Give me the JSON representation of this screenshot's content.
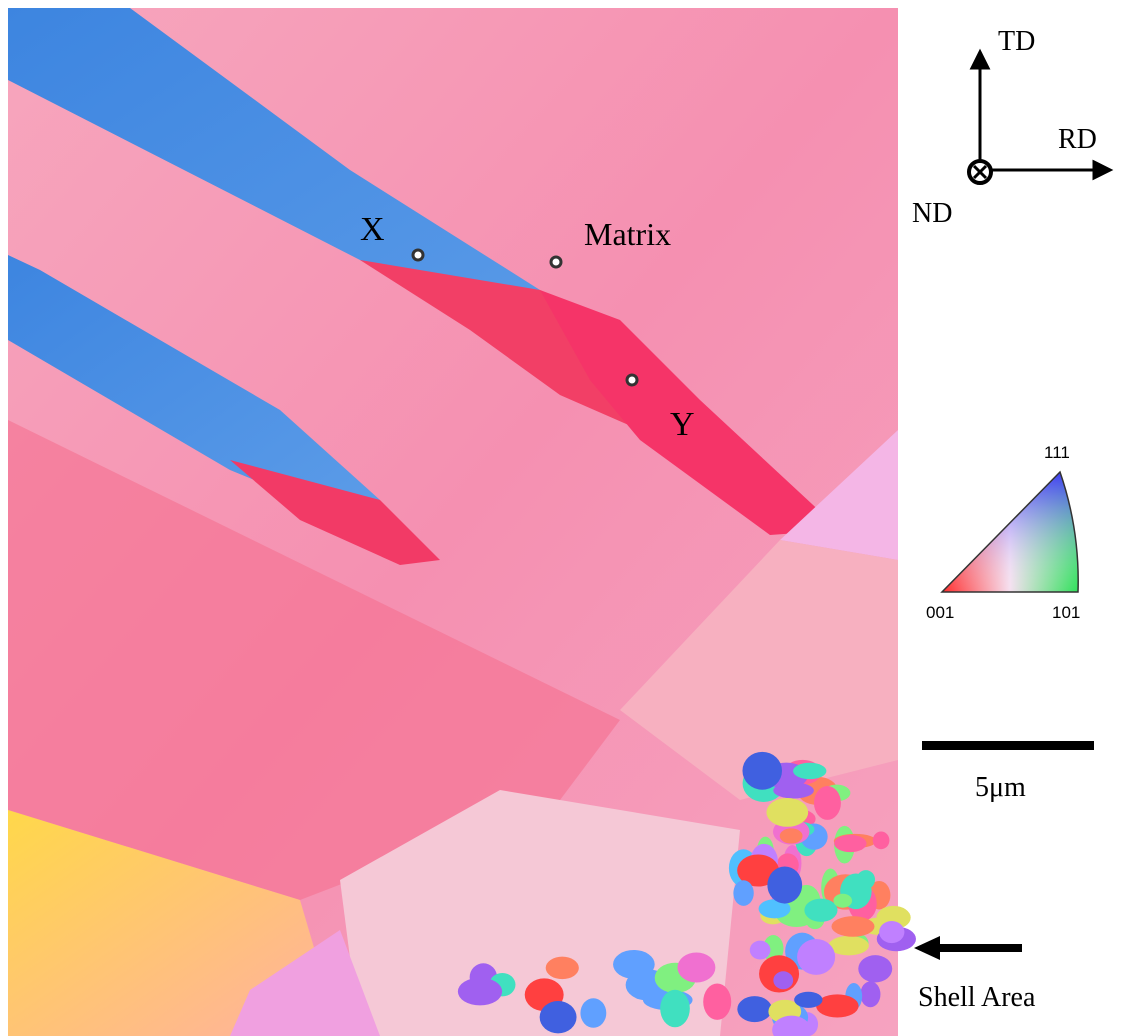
{
  "map": {
    "points": [
      {
        "label": "X"
      },
      {
        "label": "Matrix"
      },
      {
        "label": "Y"
      }
    ]
  },
  "axes": {
    "td": "TD",
    "rd": "RD",
    "nd": "ND"
  },
  "ipf_key": {
    "top": "111",
    "left": "001",
    "right": "101"
  },
  "scale_bar": {
    "label": "5μm"
  },
  "arrow": {
    "label": "Shell Area"
  }
}
